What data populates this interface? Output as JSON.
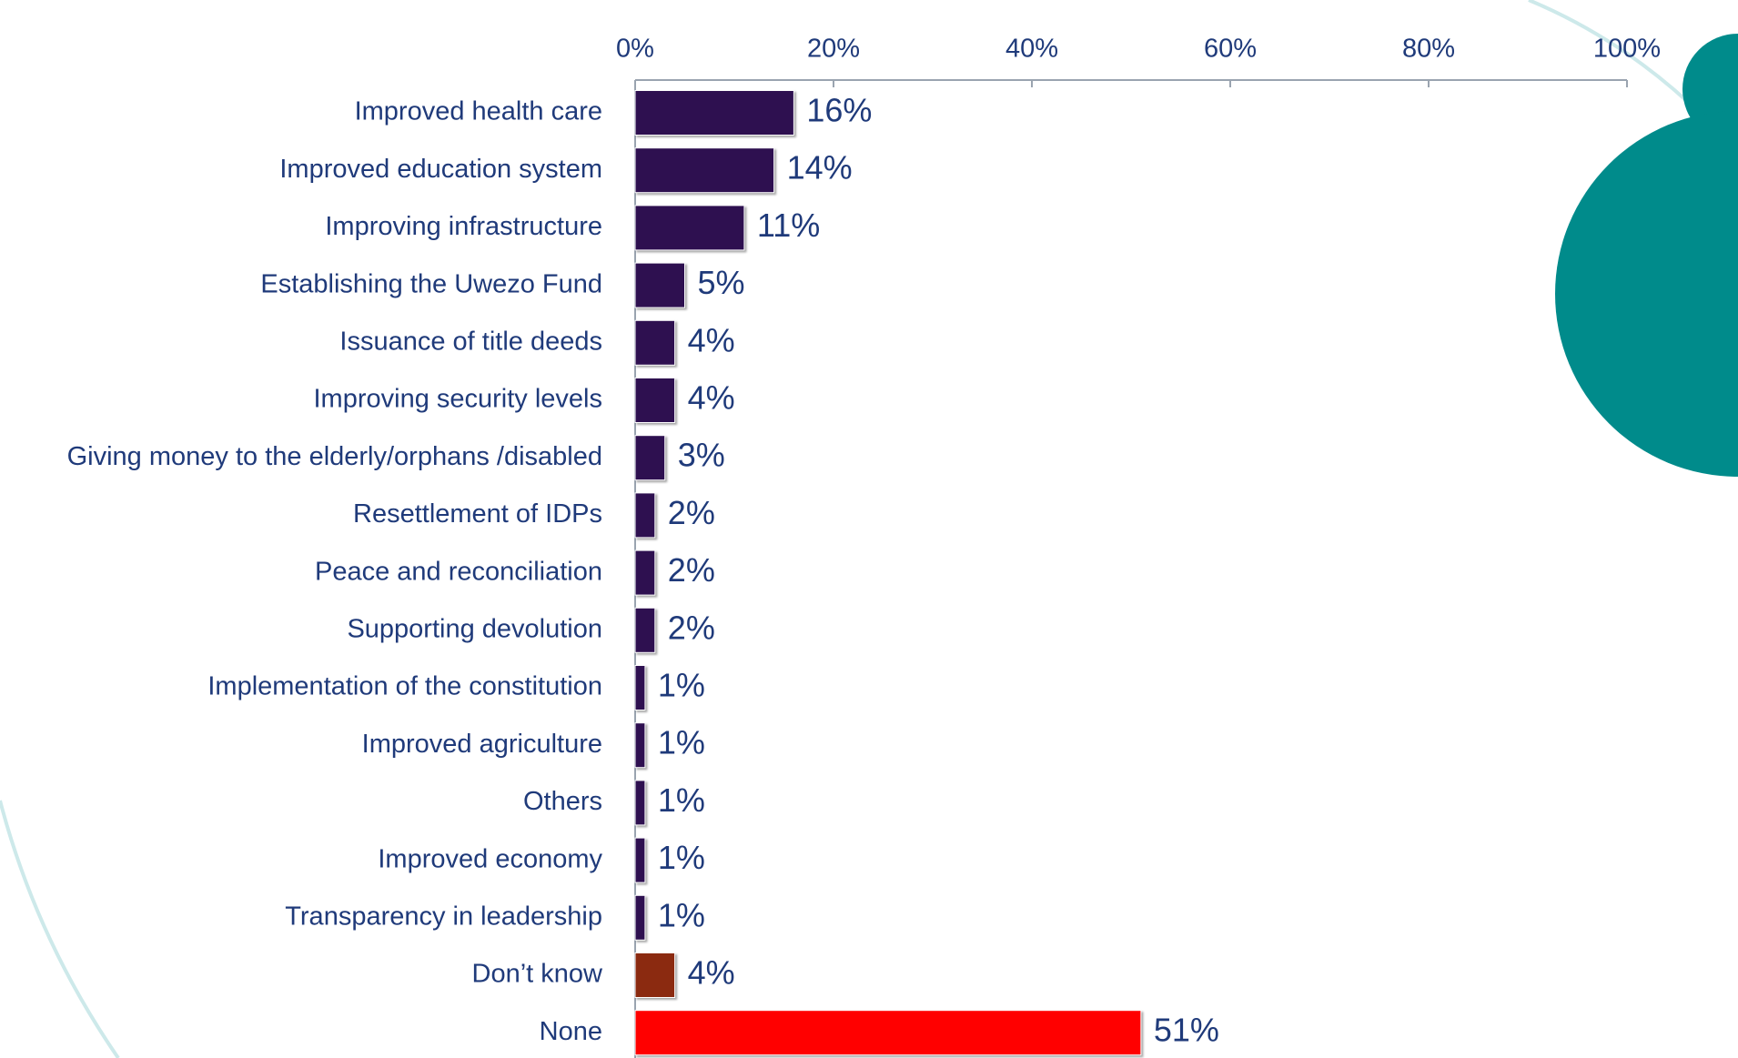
{
  "chart_data": {
    "type": "bar",
    "orientation": "horizontal",
    "categories": [
      "Improved health care",
      "Improved education system",
      "Improving infrastructure",
      "Establishing the Uwezo Fund",
      "Issuance of title deeds",
      "Improving security levels",
      "Giving money to the elderly/orphans /disabled",
      "Resettlement of IDPs",
      "Peace and reconciliation",
      "Supporting devolution",
      "Implementation of the constitution",
      "Improved agriculture",
      "Others",
      "Improved economy",
      "Transparency in leadership",
      "Don’t know",
      "None"
    ],
    "values": [
      16,
      14,
      11,
      5,
      4,
      4,
      3,
      2,
      2,
      2,
      1,
      1,
      1,
      1,
      1,
      4,
      51
    ],
    "value_labels": [
      "16%",
      "14%",
      "11%",
      "5%",
      "4%",
      "4%",
      "3%",
      "2%",
      "2%",
      "2%",
      "1%",
      "1%",
      "1%",
      "1%",
      "1%",
      "4%",
      "51%"
    ],
    "colors": [
      "#2e1050",
      "#2e1050",
      "#2e1050",
      "#2e1050",
      "#2e1050",
      "#2e1050",
      "#2e1050",
      "#2e1050",
      "#2e1050",
      "#2e1050",
      "#2e1050",
      "#2e1050",
      "#2e1050",
      "#2e1050",
      "#2e1050",
      "#8b2a10",
      "#ff0000"
    ],
    "xlim": [
      0,
      100
    ],
    "xticks": [
      {
        "value": 0,
        "label": "0%"
      },
      {
        "value": 20,
        "label": "20%"
      },
      {
        "value": 40,
        "label": "40%"
      },
      {
        "value": 60,
        "label": "60%"
      },
      {
        "value": 80,
        "label": "80%"
      },
      {
        "value": 100,
        "label": "100%"
      }
    ],
    "grid": false
  }
}
